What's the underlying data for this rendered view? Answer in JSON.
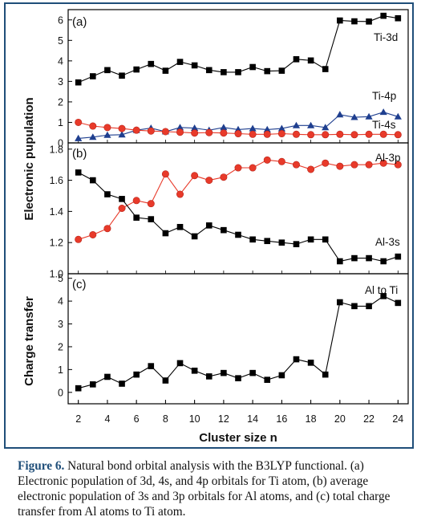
{
  "chart_data": [
    {
      "type": "line",
      "panel": "(a)",
      "x": [
        2,
        3,
        4,
        5,
        6,
        7,
        8,
        9,
        10,
        11,
        12,
        13,
        14,
        15,
        16,
        17,
        18,
        19,
        20,
        21,
        22,
        23,
        24
      ],
      "ylim": [
        0,
        6.5
      ],
      "yticks": [
        "0",
        "1",
        "2",
        "3",
        "4",
        "5",
        "6"
      ],
      "series": [
        {
          "name": "Ti-3d",
          "color": "#000000",
          "marker": "square",
          "values": [
            2.95,
            3.25,
            3.55,
            3.28,
            3.58,
            3.85,
            3.52,
            3.95,
            3.78,
            3.55,
            3.45,
            3.45,
            3.7,
            3.5,
            3.52,
            4.08,
            4.02,
            3.6,
            5.97,
            5.93,
            5.92,
            6.2,
            6.08
          ]
        },
        {
          "name": "Ti-4p",
          "color": "#1f3f8f",
          "marker": "triangle",
          "values": [
            0.22,
            0.28,
            0.38,
            0.4,
            0.62,
            0.72,
            0.55,
            0.75,
            0.72,
            0.62,
            0.75,
            0.65,
            0.7,
            0.65,
            0.7,
            0.85,
            0.85,
            0.75,
            1.38,
            1.25,
            1.28,
            1.5,
            1.28
          ]
        },
        {
          "name": "Ti-4s",
          "color": "#e83a2a",
          "marker": "circle",
          "values": [
            1.0,
            0.82,
            0.75,
            0.7,
            0.62,
            0.58,
            0.55,
            0.52,
            0.48,
            0.5,
            0.48,
            0.45,
            0.42,
            0.42,
            0.45,
            0.42,
            0.4,
            0.4,
            0.42,
            0.4,
            0.42,
            0.42,
            0.4
          ]
        }
      ]
    },
    {
      "type": "line",
      "panel": "(b)",
      "x": [
        2,
        3,
        4,
        5,
        6,
        7,
        8,
        9,
        10,
        11,
        12,
        13,
        14,
        15,
        16,
        17,
        18,
        19,
        20,
        21,
        22,
        23,
        24
      ],
      "ylim": [
        1.0,
        1.84
      ],
      "yticks": [
        "1.0",
        "1.2",
        "1.4",
        "1.6",
        "1.8"
      ],
      "series": [
        {
          "name": "Al-3p",
          "color": "#e83a2a",
          "marker": "circle",
          "values": [
            1.22,
            1.25,
            1.29,
            1.42,
            1.47,
            1.45,
            1.64,
            1.51,
            1.63,
            1.6,
            1.62,
            1.68,
            1.68,
            1.73,
            1.72,
            1.7,
            1.67,
            1.71,
            1.69,
            1.7,
            1.7,
            1.71,
            1.7
          ]
        },
        {
          "name": "Al-3s",
          "color": "#000000",
          "marker": "square",
          "values": [
            1.65,
            1.6,
            1.51,
            1.48,
            1.36,
            1.35,
            1.26,
            1.3,
            1.24,
            1.31,
            1.28,
            1.25,
            1.22,
            1.21,
            1.2,
            1.19,
            1.22,
            1.22,
            1.08,
            1.1,
            1.1,
            1.08,
            1.11
          ]
        }
      ]
    },
    {
      "type": "line",
      "panel": "(c)",
      "x": [
        2,
        3,
        4,
        5,
        6,
        7,
        8,
        9,
        10,
        11,
        12,
        13,
        14,
        15,
        16,
        17,
        18,
        19,
        20,
        21,
        22,
        23,
        24
      ],
      "ylim": [
        -0.5,
        5.2
      ],
      "yticks": [
        "0",
        "1",
        "2",
        "3",
        "4",
        "5"
      ],
      "ylabel": "Charge transfer",
      "series": [
        {
          "name": "Al to Ti",
          "color": "#000000",
          "marker": "square",
          "values": [
            0.18,
            0.35,
            0.68,
            0.38,
            0.78,
            1.15,
            0.52,
            1.28,
            0.95,
            0.7,
            0.85,
            0.62,
            0.85,
            0.55,
            0.75,
            1.45,
            1.3,
            0.78,
            3.95,
            3.78,
            3.78,
            4.22,
            3.92
          ]
        }
      ]
    }
  ],
  "axes": {
    "shared_ylabel": "Electronic pupulation",
    "xlabel": "Cluster size n",
    "xticks": [
      "2",
      "4",
      "6",
      "8",
      "10",
      "12",
      "14",
      "16",
      "18",
      "20",
      "22",
      "24"
    ]
  },
  "caption": {
    "label": "Figure 6.",
    "text": " Natural bond orbital analysis with the B3LYP functional. (a) Electronic population of 3d, 4s, and 4p orbitals for Ti atom, (b) average electronic population of 3s and 3p orbitals for Al atoms, and (c) total charge transfer from Al atoms to Ti atom."
  }
}
